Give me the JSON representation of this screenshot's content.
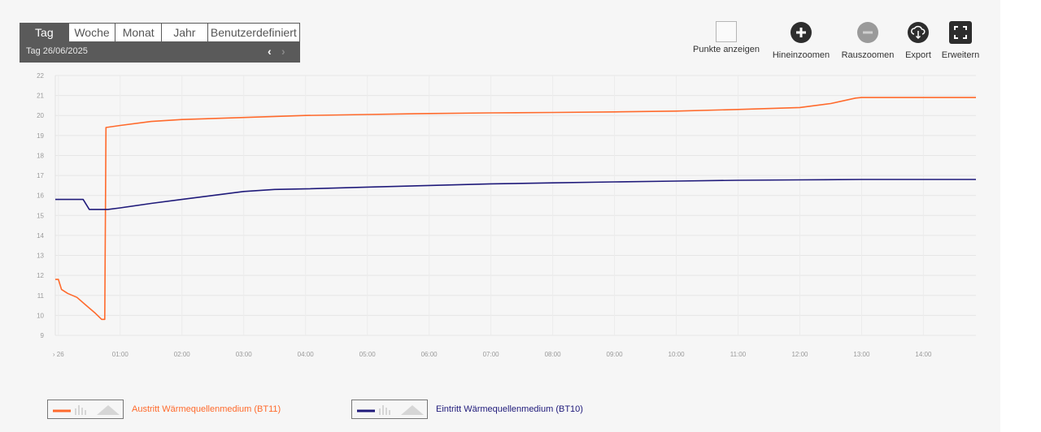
{
  "period": {
    "tabs": [
      "Tag",
      "Woche",
      "Monat",
      "Jahr",
      "Benutzerdefiniert"
    ],
    "active_tab": "Tag",
    "date_label": "Tag  26/06/2025",
    "prev_icon": "chevron-left-icon",
    "next_icon": "chevron-right-icon"
  },
  "toolbar": {
    "show_points": "Punkte anzeigen",
    "zoom_in": "Hineinzoomen",
    "zoom_out": "Rauszoomen",
    "export": "Export",
    "expand": "Erweitern"
  },
  "chart_data": {
    "type": "line",
    "title": "",
    "xlabel": "",
    "ylabel": "",
    "x_unit": "hours",
    "xlim": [
      -0.05,
      14.85
    ],
    "ylim": [
      9,
      22
    ],
    "yticks": [
      9,
      10,
      11,
      12,
      13,
      14,
      15,
      16,
      17,
      18,
      19,
      20,
      21,
      22
    ],
    "xticks": [
      {
        "x": 0,
        "label": "› 26"
      },
      {
        "x": 1,
        "label": "01:00"
      },
      {
        "x": 2,
        "label": "02:00"
      },
      {
        "x": 3,
        "label": "03:00"
      },
      {
        "x": 4,
        "label": "04:00"
      },
      {
        "x": 5,
        "label": "05:00"
      },
      {
        "x": 6,
        "label": "06:00"
      },
      {
        "x": 7,
        "label": "07:00"
      },
      {
        "x": 8,
        "label": "08:00"
      },
      {
        "x": 9,
        "label": "09:00"
      },
      {
        "x": 10,
        "label": "10:00"
      },
      {
        "x": 11,
        "label": "11:00"
      },
      {
        "x": 12,
        "label": "12:00"
      },
      {
        "x": 13,
        "label": "13:00"
      },
      {
        "x": 14,
        "label": "14:00"
      }
    ],
    "grid": true,
    "legend_position": "bottom-left",
    "series": [
      {
        "name": "Austritt Wärmequellenmedium (BT11)",
        "color": "#ff6a2c",
        "points": [
          [
            -0.05,
            11.8
          ],
          [
            0.0,
            11.8
          ],
          [
            0.05,
            11.3
          ],
          [
            0.15,
            11.1
          ],
          [
            0.3,
            10.9
          ],
          [
            0.45,
            10.5
          ],
          [
            0.6,
            10.1
          ],
          [
            0.7,
            9.8
          ],
          [
            0.75,
            9.8
          ],
          [
            0.77,
            19.4
          ],
          [
            1.0,
            19.5
          ],
          [
            1.5,
            19.7
          ],
          [
            2.0,
            19.8
          ],
          [
            3.0,
            19.9
          ],
          [
            4.0,
            20.0
          ],
          [
            5.0,
            20.05
          ],
          [
            6.0,
            20.1
          ],
          [
            7.0,
            20.13
          ],
          [
            8.0,
            20.15
          ],
          [
            9.0,
            20.18
          ],
          [
            10.0,
            20.22
          ],
          [
            11.0,
            20.3
          ],
          [
            12.0,
            20.4
          ],
          [
            12.5,
            20.6
          ],
          [
            12.9,
            20.87
          ],
          [
            13.0,
            20.9
          ],
          [
            14.0,
            20.9
          ],
          [
            14.85,
            20.9
          ]
        ]
      },
      {
        "name": "Eintritt Wärmequellenmedium (BT10)",
        "color": "#1f1a7a",
        "points": [
          [
            -0.05,
            15.8
          ],
          [
            0.0,
            15.8
          ],
          [
            0.4,
            15.8
          ],
          [
            0.5,
            15.3
          ],
          [
            0.8,
            15.3
          ],
          [
            1.0,
            15.38
          ],
          [
            1.5,
            15.6
          ],
          [
            2.0,
            15.8
          ],
          [
            2.5,
            16.0
          ],
          [
            3.0,
            16.2
          ],
          [
            3.5,
            16.3
          ],
          [
            4.0,
            16.33
          ],
          [
            5.0,
            16.42
          ],
          [
            6.0,
            16.5
          ],
          [
            7.0,
            16.58
          ],
          [
            8.0,
            16.63
          ],
          [
            9.0,
            16.68
          ],
          [
            10.0,
            16.72
          ],
          [
            11.0,
            16.76
          ],
          [
            12.0,
            16.78
          ],
          [
            13.0,
            16.8
          ],
          [
            14.0,
            16.8
          ],
          [
            14.85,
            16.8
          ]
        ]
      }
    ]
  }
}
